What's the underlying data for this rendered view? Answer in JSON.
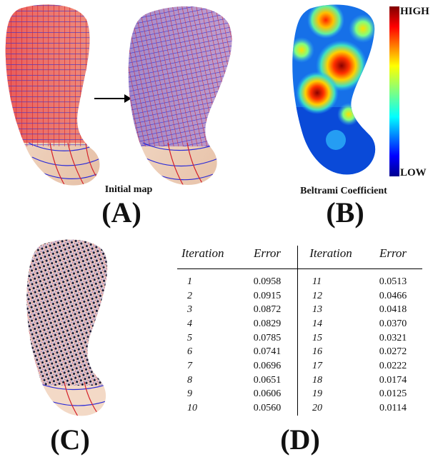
{
  "panels": {
    "a": {
      "label": "(A)",
      "caption": "Initial map"
    },
    "b": {
      "label": "(B)",
      "caption": "Beltrami Coefficient",
      "colorbar": {
        "high": "HIGH",
        "low": "LOW"
      }
    },
    "c": {
      "label": "(C)"
    },
    "d": {
      "label": "(D)"
    }
  },
  "table": {
    "headers": [
      "Iteration",
      "Error",
      "Iteration",
      "Error"
    ],
    "left": [
      {
        "iteration": "1",
        "error": "0.0958"
      },
      {
        "iteration": "2",
        "error": "0.0915"
      },
      {
        "iteration": "3",
        "error": "0.0872"
      },
      {
        "iteration": "4",
        "error": "0.0829"
      },
      {
        "iteration": "5",
        "error": "0.0785"
      },
      {
        "iteration": "6",
        "error": "0.0741"
      },
      {
        "iteration": "7",
        "error": "0.0696"
      },
      {
        "iteration": "8",
        "error": "0.0651"
      },
      {
        "iteration": "9",
        "error": "0.0606"
      },
      {
        "iteration": "10",
        "error": "0.0560"
      }
    ],
    "right": [
      {
        "iteration": "11",
        "error": "0.0513"
      },
      {
        "iteration": "12",
        "error": "0.0466"
      },
      {
        "iteration": "13",
        "error": "0.0418"
      },
      {
        "iteration": "14",
        "error": "0.0370"
      },
      {
        "iteration": "15",
        "error": "0.0321"
      },
      {
        "iteration": "16",
        "error": "0.0272"
      },
      {
        "iteration": "17",
        "error": "0.0222"
      },
      {
        "iteration": "18",
        "error": "0.0174"
      },
      {
        "iteration": "19",
        "error": "0.0125"
      },
      {
        "iteration": "20",
        "error": "0.0114"
      }
    ]
  },
  "colors": {
    "grid_red": "#e0222a",
    "grid_blue": "#2a2ad8",
    "surface": "#f3d9c6",
    "jet_high": "#800000",
    "jet_low": "#00008f"
  }
}
